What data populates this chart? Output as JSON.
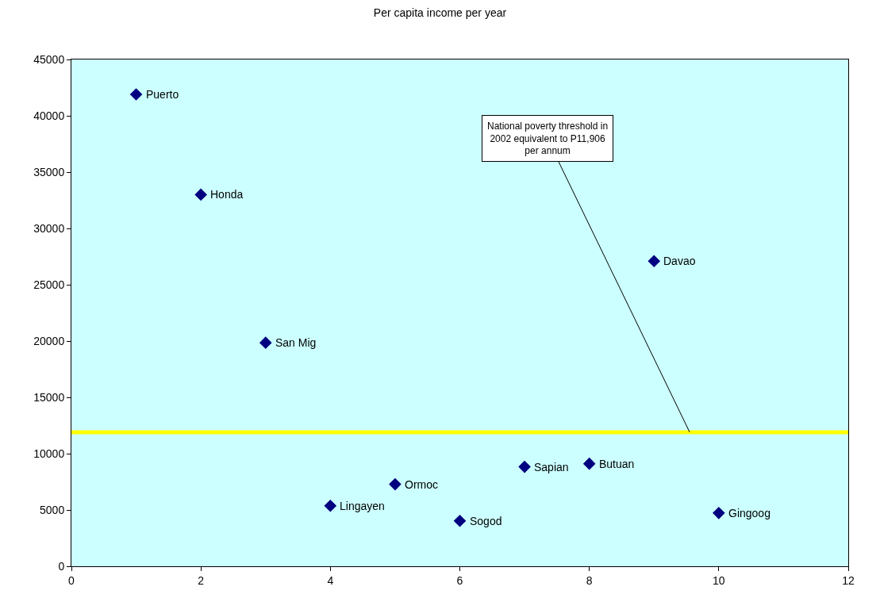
{
  "chart_data": {
    "type": "scatter",
    "title": "Per capita income per year",
    "x": [
      1,
      2,
      3,
      4,
      5,
      6,
      7,
      8,
      9,
      10
    ],
    "series": [
      {
        "color": "#000080",
        "values": [
          41900,
          33000,
          19850,
          5370,
          7280,
          4030,
          8830,
          9110,
          27100,
          4730
        ]
      }
    ],
    "marker": "diamond",
    "xlim": [
      0,
      12
    ],
    "xticks": [
      0,
      2,
      4,
      6,
      8,
      10,
      12
    ],
    "ylim": [
      0,
      45000
    ],
    "yticks": [
      0,
      5000,
      10000,
      15000,
      20000,
      25000,
      30000,
      35000,
      40000,
      45000
    ],
    "ref_lines": [
      {
        "axis": "y",
        "value": 11906,
        "color": "#ffff00"
      }
    ],
    "annotations": [
      {
        "text": "Puerto",
        "x": 1,
        "y": 41900
      },
      {
        "text": "Honda",
        "x": 2,
        "y": 33000
      },
      {
        "text": "San Mig",
        "x": 3,
        "y": 19850
      },
      {
        "text": "Lingayen",
        "x": 4,
        "y": 5370
      },
      {
        "text": "Ormoc",
        "x": 5,
        "y": 7280
      },
      {
        "text": "Sogod",
        "x": 6,
        "y": 4030
      },
      {
        "text": "Sapian",
        "x": 7,
        "y": 8830
      },
      {
        "text": "Butuan",
        "x": 8,
        "y": 9110
      },
      {
        "text": "Davao",
        "x": 9,
        "y": 27100
      },
      {
        "text": "Gingoog",
        "x": 10,
        "y": 4730
      },
      {
        "text": "National poverty threshold in 2002 equivalent to P11,906 per annum",
        "x": 9.55,
        "y": 11906
      }
    ]
  }
}
